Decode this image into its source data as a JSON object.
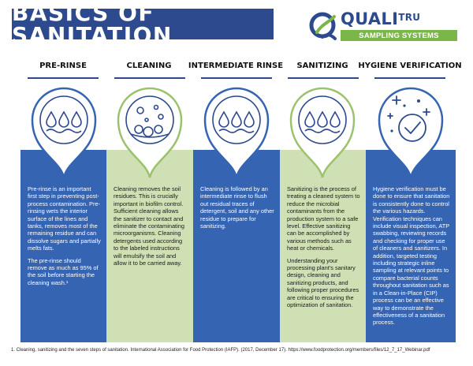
{
  "title": "BASICS OF SANITATION",
  "logo": {
    "brand_main": "QUALI",
    "brand_accent": "TRU",
    "subtitle": "SAMPLING SYSTEMS"
  },
  "colors": {
    "navy": "#2e4a8f",
    "blue_column": "#3464b2",
    "green_column": "#cfe0b4",
    "accent_green": "#7ab648"
  },
  "columns": [
    {
      "heading": "PRE-RINSE",
      "icon": "water-droplets-icon",
      "paragraphs": [
        "Pre-rinse is an important first step in preventing post-process contamination. Pre-rinsing wets the interior surface of the lines and tanks, removes most of the remaining residue and can dissolve sugars and partially melts fats.",
        "The pre-rinse should remove as much as 95% of the soil before starting the cleaning wash.¹"
      ]
    },
    {
      "heading": "CLEANING",
      "icon": "soap-bubbles-icon",
      "paragraphs": [
        "Cleaning removes the soil residues. This is crucially important in biofilm control. Sufficient cleaning allows the sanitizer to contact and eliminate the contaminating microorganisms. Cleaning detergents used according to the labeled instructions will emulsify the soil and allow it to be carried away."
      ]
    },
    {
      "heading": "INTERMEDIATE RINSE",
      "icon": "water-droplets-icon",
      "paragraphs": [
        "Cleaning is followed by an intermediate rinse to flush out residual traces of detergent, soil and any other residue to prepare for sanitizing."
      ]
    },
    {
      "heading": "SANITIZING",
      "icon": "water-droplets-icon",
      "paragraphs": [
        "Sanitizing is the process of treating a cleaned system to reduce the microbial contaminants from the production system to a safe level. Effective sanitizing can be accomplished by various methods such as heat or chemicals.",
        "Understanding your processing plant's sanitary design, cleaning and sanitizing products, and following proper procedures are critical to ensuring the optimization of sanitation."
      ]
    },
    {
      "heading": "HYGIENE VERIFICATION",
      "icon": "checkmark-sparkle-icon",
      "paragraphs": [
        "Hygiene verification must be done to ensure that sanitation is consistently done to control the various hazards. Verification techniques can include visual inspection, ATP swabbing, reviewing records and checking for proper use of cleaners and sanitizers. In addition, targeted testing including strategic inline sampling at relevant points to compare bacterial counts throughout sanitation such as in a Clean-in-Place (CIP) process can be an effective way to demonstrate the effectiveness of a sanitation process."
      ]
    }
  ],
  "footnote": "1. Cleaning, sanitizing and the seven steps of sanitation. International Association for Food Protection (IAFP). (2017, December 17). https://www.foodprotection.org/members/files/12_7_17_Webinar.pdf"
}
